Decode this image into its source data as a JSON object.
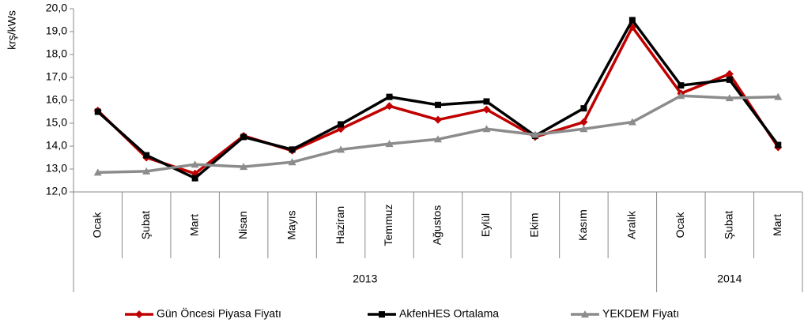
{
  "chart_data": {
    "type": "line",
    "y_label": "krş/kWs",
    "categories": [
      "Ocak",
      "Şubat",
      "Mart",
      "Nisan",
      "Mayıs",
      "Haziran",
      "Temmuz",
      "Ağustos",
      "Eylül",
      "Ekim",
      "Kasım",
      "Aralık",
      "Ocak",
      "Şubat",
      "Mart"
    ],
    "year_groups": [
      {
        "label": "2013",
        "span": 12
      },
      {
        "label": "2014",
        "span": 3
      }
    ],
    "series": [
      {
        "name": "Gün Öncesi Piyasa Fiyatı",
        "color": "#c00000",
        "marker": "diamond",
        "values": [
          15.55,
          13.5,
          12.8,
          14.45,
          13.8,
          14.75,
          15.75,
          15.15,
          15.6,
          14.4,
          15.05,
          19.2,
          16.3,
          17.15,
          13.95
        ]
      },
      {
        "name": "AkfenHES Ortalama",
        "color": "#000000",
        "marker": "square",
        "values": [
          15.5,
          13.6,
          12.6,
          14.4,
          13.85,
          14.95,
          16.15,
          15.8,
          15.95,
          14.45,
          15.65,
          19.5,
          16.65,
          16.9,
          14.05
        ]
      },
      {
        "name": "YEKDEM Fiyatı",
        "color": "#8c8c8c",
        "marker": "triangle",
        "values": [
          12.85,
          12.9,
          13.2,
          13.1,
          13.3,
          13.85,
          14.1,
          14.3,
          14.75,
          14.5,
          14.75,
          15.05,
          16.2,
          16.1,
          16.15
        ]
      }
    ],
    "ylim": [
      12,
      20
    ],
    "yticks": [
      {
        "value": 12,
        "label": "12,0"
      },
      {
        "value": 13,
        "label": "13,0"
      },
      {
        "value": 14,
        "label": "14,0"
      },
      {
        "value": 15,
        "label": "15,0"
      },
      {
        "value": 16,
        "label": "16,0"
      },
      {
        "value": 17,
        "label": "17,0"
      },
      {
        "value": 18,
        "label": "18,0"
      },
      {
        "value": 19,
        "label": "19,0"
      },
      {
        "value": 20,
        "label": "20,0"
      }
    ],
    "legend": "bottom"
  }
}
